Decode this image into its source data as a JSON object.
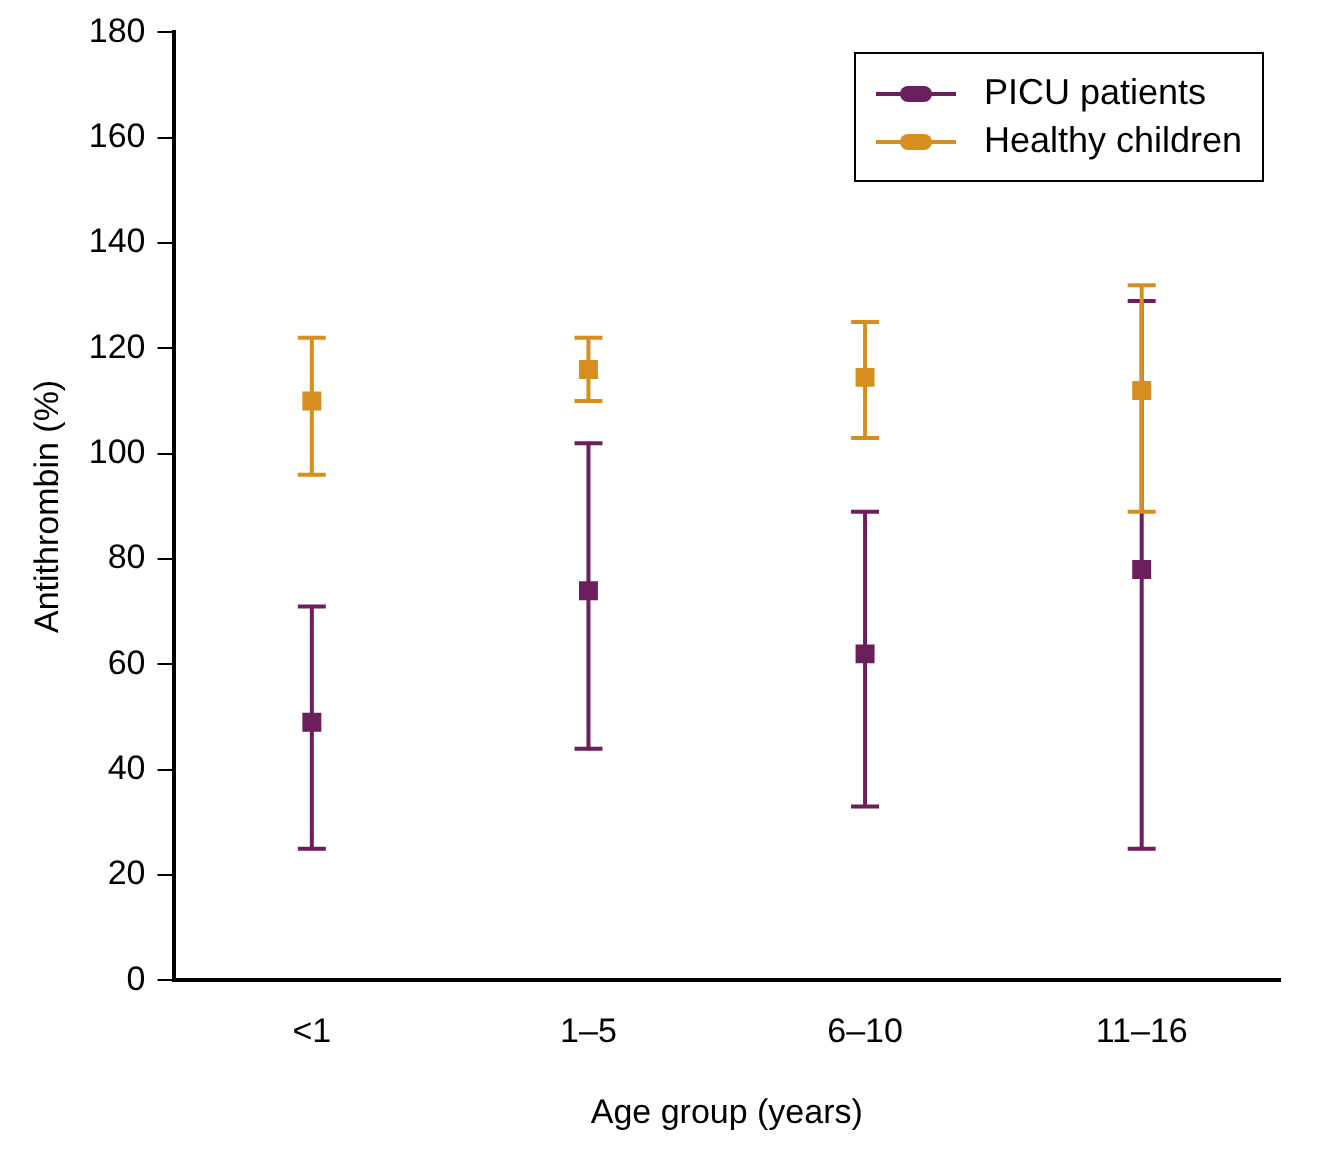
{
  "chart_data": {
    "type": "scatter",
    "xlabel": "Age group (years)",
    "ylabel": "Antithrombin (%)",
    "categories": [
      "<1",
      "1–5",
      "6–10",
      "11–16"
    ],
    "series": [
      {
        "name": "PICU patients",
        "color": "#6b1f5c",
        "x": [
          "<1",
          "1–5",
          "6–10",
          "11–16"
        ],
        "values": [
          49,
          74,
          62,
          78
        ],
        "errors": [
          [
            25,
            71
          ],
          [
            44,
            102
          ],
          [
            33,
            89
          ],
          [
            25,
            129
          ]
        ]
      },
      {
        "name": "Healthy children",
        "color": "#d68f1f",
        "x": [
          "<1",
          "1–5",
          "6–10",
          "11–16"
        ],
        "values": [
          110,
          116,
          114.5,
          112
        ],
        "errors": [
          [
            96,
            122
          ],
          [
            110,
            122
          ],
          [
            103,
            125
          ],
          [
            89,
            132
          ]
        ]
      }
    ],
    "ylim": [
      0,
      180
    ],
    "yticks": [
      0,
      20,
      40,
      60,
      80,
      100,
      120,
      140,
      160,
      180
    ],
    "grid": false,
    "legend": "top right",
    "marker": "square"
  }
}
